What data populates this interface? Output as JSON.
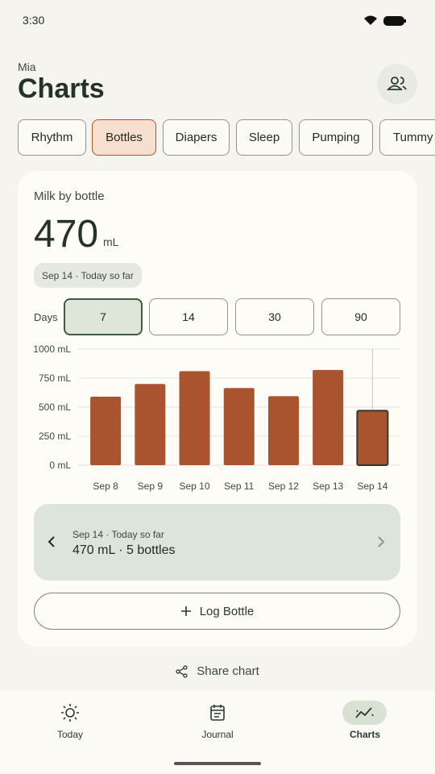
{
  "status": {
    "time": "3:30"
  },
  "header": {
    "profile": "Mia",
    "title": "Charts"
  },
  "tabs": [
    "Rhythm",
    "Bottles",
    "Diapers",
    "Sleep",
    "Pumping",
    "Tummy"
  ],
  "card": {
    "title": "Milk by bottle",
    "total": 470,
    "unit": "mL",
    "date_chip": "Sep 14 · Today so far",
    "range_label": "Days",
    "ranges": [
      7,
      14,
      30,
      90
    ]
  },
  "chart_data": {
    "type": "bar",
    "categories": [
      "Sep 8",
      "Sep 9",
      "Sep 10",
      "Sep 11",
      "Sep 12",
      "Sep 13",
      "Sep 14"
    ],
    "values": [
      590,
      700,
      810,
      665,
      595,
      820,
      470
    ],
    "color": "#a9532f",
    "ylim": [
      0,
      1000
    ],
    "yticks": [
      {
        "value": 0,
        "label": "0 mL"
      },
      {
        "value": 250,
        "label": "250 mL"
      },
      {
        "value": 500,
        "label": "500 mL"
      },
      {
        "value": 750,
        "label": "750 mL"
      },
      {
        "value": 1000,
        "label": "1000 mL"
      }
    ],
    "grid": true
  },
  "summary": {
    "date": "Sep 14 · Today so far",
    "detail": "470 mL · 5 bottles"
  },
  "log_button": "Log Bottle",
  "share": "Share chart",
  "nav": [
    "Today",
    "Journal",
    "Charts"
  ]
}
